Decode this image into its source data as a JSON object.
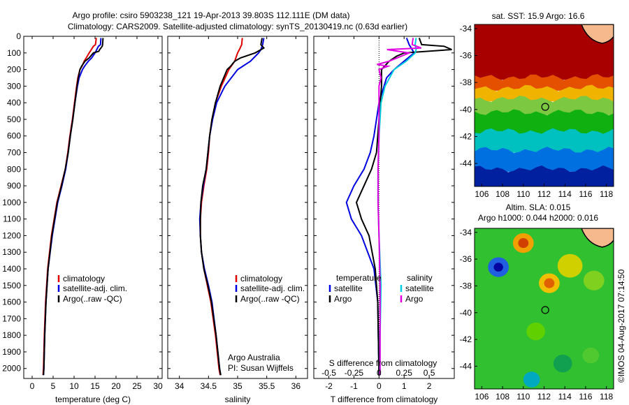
{
  "header": {
    "line1": "Argo profile: csiro 5903238_121 19-Apr-2013 39.803S 112.111E (DM data)",
    "line2": "Climatology: CARS2009. Satellite-adjusted climatology: synTS_20130419.nc (0.63d earlier)"
  },
  "colors": {
    "climatology": "#e00000",
    "satellite": "#0000e0",
    "argo": "#000000",
    "sat_salinity": "#00d0e0",
    "argo_salinity": "#e000e0"
  },
  "chart_data": [
    {
      "type": "line",
      "name": "temperature-profile",
      "xlabel": "temperature (deg C)",
      "x_ticks": [
        0,
        5,
        10,
        15,
        20,
        25,
        30
      ],
      "xlim": [
        -2,
        31
      ],
      "y_ticks": [
        0,
        100,
        200,
        300,
        400,
        500,
        600,
        700,
        800,
        900,
        1000,
        1100,
        1200,
        1300,
        1400,
        1500,
        1600,
        1700,
        1800,
        1900,
        2000
      ],
      "ylim": [
        0,
        2060
      ],
      "legend": [
        "climatology",
        "satellite-adj. clim.",
        "Argo(..raw -QC)"
      ],
      "series": [
        {
          "name": "climatology",
          "color": "#e00000",
          "pressure": [
            10,
            50,
            60,
            100,
            130,
            150,
            180,
            200,
            250,
            300,
            400,
            500,
            600,
            700,
            800,
            900,
            1000,
            1200,
            1400,
            1600,
            1800,
            2000,
            2040
          ],
          "values": [
            15.3,
            15.1,
            14.6,
            13.6,
            12.9,
            12.4,
            11.9,
            11.4,
            10.9,
            10.6,
            10.1,
            9.6,
            9.0,
            8.5,
            7.9,
            6.9,
            5.9,
            4.6,
            3.7,
            3.2,
            2.9,
            2.7,
            2.6
          ]
        },
        {
          "name": "satellite-adj. clim.",
          "color": "#0000e0",
          "pressure": [
            10,
            50,
            60,
            100,
            130,
            150,
            180,
            200,
            250,
            300,
            400,
            500,
            600,
            700,
            800,
            900,
            1000,
            1200,
            1400,
            1600,
            1800,
            2000,
            2040
          ],
          "values": [
            16.4,
            16.3,
            15.8,
            15.0,
            14.2,
            13.4,
            12.5,
            12.0,
            11.2,
            10.8,
            10.2,
            9.7,
            9.1,
            8.6,
            8.0,
            7.1,
            6.1,
            4.8,
            3.8,
            3.3,
            3.0,
            2.8,
            2.7
          ]
        },
        {
          "name": "Argo(..raw -QC)",
          "color": "#000000",
          "pressure": [
            10,
            50,
            60,
            80,
            90,
            100,
            130,
            150,
            180,
            200,
            250,
            300,
            400,
            500,
            600,
            700,
            800,
            900,
            1000,
            1200,
            1400,
            1600,
            1800,
            2000,
            2040
          ],
          "values": [
            16.9,
            16.8,
            16.7,
            16.1,
            15.9,
            14.6,
            13.6,
            12.6,
            11.8,
            11.4,
            11.0,
            10.7,
            10.2,
            9.7,
            9.1,
            8.6,
            7.9,
            7.0,
            6.0,
            4.7,
            3.8,
            3.3,
            3.0,
            2.8,
            2.7
          ]
        }
      ]
    },
    {
      "type": "line",
      "name": "salinity-profile",
      "xlabel": "salinity",
      "x_ticks": [
        34,
        34.5,
        35,
        35.5,
        36
      ],
      "xlim": [
        33.8,
        36.2
      ],
      "ylim": [
        0,
        2060
      ],
      "legend": [
        "climatology",
        "satellite-adj. clim.",
        "Argo(..raw -QC)"
      ],
      "annotation": [
        "Argo Australia",
        "PI: Susan Wijffels"
      ],
      "series": [
        {
          "name": "climatology",
          "color": "#e00000",
          "pressure": [
            10,
            50,
            80,
            100,
            150,
            200,
            300,
            400,
            500,
            600,
            700,
            800,
            900,
            1000,
            1100,
            1200,
            1300,
            1400,
            1500,
            1600,
            1800,
            2000,
            2040
          ],
          "values": [
            35.08,
            35.07,
            35.03,
            35.0,
            34.95,
            34.85,
            34.72,
            34.62,
            34.56,
            34.52,
            34.5,
            34.47,
            34.42,
            34.38,
            34.36,
            34.36,
            34.38,
            34.42,
            34.48,
            34.54,
            34.62,
            34.68,
            34.7
          ]
        },
        {
          "name": "satellite-adj. clim.",
          "color": "#0000e0",
          "pressure": [
            10,
            50,
            80,
            100,
            150,
            200,
            300,
            400,
            500,
            600,
            700,
            800,
            900,
            1000,
            1100,
            1200,
            1300,
            1400,
            1500,
            1600,
            1800,
            2000,
            2040
          ],
          "values": [
            35.45,
            35.43,
            35.4,
            35.36,
            35.22,
            35.0,
            34.78,
            34.64,
            34.57,
            34.52,
            34.49,
            34.46,
            34.41,
            34.37,
            34.35,
            34.36,
            34.38,
            34.43,
            34.5,
            34.56,
            34.63,
            34.69,
            34.71
          ]
        },
        {
          "name": "Argo(..raw -QC)",
          "color": "#000000",
          "pressure": [
            10,
            50,
            70,
            100,
            130,
            150,
            180,
            200,
            250,
            300,
            400,
            500,
            600,
            700,
            800,
            900,
            1000,
            1100,
            1200,
            1300,
            1400,
            1500,
            1600,
            1800,
            2000,
            2040
          ],
          "values": [
            35.42,
            35.4,
            35.45,
            35.3,
            35.05,
            34.95,
            34.88,
            34.82,
            34.76,
            34.7,
            34.62,
            34.56,
            34.52,
            34.49,
            34.46,
            34.4,
            34.37,
            34.36,
            34.36,
            34.38,
            34.42,
            34.49,
            34.55,
            34.63,
            34.69,
            34.71
          ]
        }
      ]
    },
    {
      "type": "line",
      "name": "difference-profile",
      "xlabel": "T difference from climatology",
      "xlabel_top": "S difference from climatology",
      "x_ticks": [
        -2,
        -1,
        0,
        1,
        2
      ],
      "xlim": [
        -2.6,
        3.0
      ],
      "x_ticks_top": [
        -0.5,
        -0.25,
        0,
        0.25,
        0.5
      ],
      "ylim": [
        0,
        2060
      ],
      "legend": {
        "temperature": [
          "satellite",
          "Argo"
        ],
        "salinity": [
          "satellite",
          "Argo"
        ]
      },
      "legend_titles": [
        "temperature",
        "salinity"
      ],
      "series": [
        {
          "name": "temperature satellite",
          "color": "#0000e0",
          "pressure": [
            10,
            50,
            100,
            150,
            200,
            250,
            300,
            400,
            500,
            600,
            700,
            800,
            900,
            1000,
            1100,
            1200,
            1400,
            1600,
            2040
          ],
          "values": [
            1.1,
            1.2,
            1.4,
            1.0,
            0.6,
            0.3,
            0.2,
            0.0,
            -0.1,
            -0.2,
            -0.35,
            -0.6,
            -1.0,
            -1.3,
            -1.1,
            -0.7,
            -0.2,
            -0.05,
            0.0
          ]
        },
        {
          "name": "temperature Argo",
          "color": "#000000",
          "pressure": [
            10,
            50,
            60,
            80,
            100,
            120,
            150,
            200,
            250,
            300,
            400,
            500,
            600,
            700,
            800,
            900,
            1000,
            1100,
            1200,
            1400,
            1600,
            2040
          ],
          "values": [
            1.6,
            1.7,
            2.6,
            2.9,
            1.0,
            0.7,
            0.4,
            0.1,
            0.1,
            0.1,
            0.05,
            0.0,
            -0.05,
            -0.1,
            -0.3,
            -0.6,
            -0.9,
            -0.7,
            -0.4,
            -0.15,
            -0.05,
            0.0
          ]
        },
        {
          "name": "salinity satellite",
          "color": "#00d0e0",
          "pressure": [
            10,
            50,
            80,
            100,
            150,
            200,
            300,
            400,
            500,
            600,
            800,
            1000,
            1200,
            1500,
            1800,
            2040
          ],
          "values": [
            0.37,
            0.36,
            0.37,
            0.36,
            0.27,
            0.15,
            0.06,
            0.02,
            0.01,
            0.0,
            -0.01,
            -0.01,
            0.0,
            0.02,
            0.01,
            0.01
          ]
        },
        {
          "name": "salinity Argo",
          "color": "#e000e0",
          "pressure": [
            10,
            50,
            70,
            80,
            100,
            150,
            170,
            180,
            200,
            250,
            300,
            400,
            600,
            800,
            1000,
            1200,
            1500,
            2040
          ],
          "values": [
            0.34,
            0.33,
            0.42,
            0.08,
            0.3,
            0.1,
            -0.02,
            0.09,
            0.0,
            0.02,
            0.0,
            0.0,
            0.0,
            -0.01,
            -0.01,
            0.0,
            0.01,
            0.01
          ]
        }
      ]
    },
    {
      "type": "heatmap",
      "name": "sst-map",
      "title": "sat. SST: 15.9 Argo: 16.6",
      "x_ticks": [
        106,
        108,
        110,
        112,
        114,
        116,
        118
      ],
      "y_ticks": [
        -34,
        -36,
        -38,
        -40,
        -42,
        -44
      ],
      "xlim": [
        105.3,
        118.7
      ],
      "ylim": [
        -45.7,
        -33.7
      ],
      "marker": {
        "lon": 112.111,
        "lat": -39.803
      },
      "bands": [
        {
          "lat_top": -33.7,
          "lat_bottom": -37.6,
          "color": "#a80000"
        },
        {
          "lat_top": -37.6,
          "lat_bottom": -38.4,
          "color": "#e45000"
        },
        {
          "lat_top": -38.4,
          "lat_bottom": -39.2,
          "color": "#f0b400"
        },
        {
          "lat_top": -39.2,
          "lat_bottom": -40.2,
          "color": "#7cc840"
        },
        {
          "lat_top": -40.2,
          "lat_bottom": -41.6,
          "color": "#10b010"
        },
        {
          "lat_top": -41.6,
          "lat_bottom": -43.0,
          "color": "#00c0c0"
        },
        {
          "lat_top": -43.0,
          "lat_bottom": -44.4,
          "color": "#0070e0"
        },
        {
          "lat_top": -44.4,
          "lat_bottom": -45.7,
          "color": "#0020a0"
        }
      ]
    },
    {
      "type": "heatmap",
      "name": "sla-map",
      "title": "Altim. SLA: 0.015",
      "subtitle": "Argo h1000: 0.044 h2000: 0.016",
      "x_ticks": [
        106,
        108,
        110,
        112,
        114,
        116,
        118
      ],
      "y_ticks": [
        -34,
        -36,
        -38,
        -40,
        -42,
        -44
      ],
      "xlim": [
        105.3,
        118.7
      ],
      "ylim": [
        -45.7,
        -33.7
      ],
      "marker": {
        "lon": 112.111,
        "lat": -39.803
      },
      "background": "#30c030",
      "blobs": [
        {
          "lon": 107.6,
          "lat": -36.6,
          "r": 1.0,
          "color": "#2060e0"
        },
        {
          "lon": 107.6,
          "lat": -36.6,
          "r": 0.45,
          "color": "#0000a0"
        },
        {
          "lon": 110.0,
          "lat": -34.8,
          "r": 1.0,
          "color": "#f0a000"
        },
        {
          "lon": 110.0,
          "lat": -34.8,
          "r": 0.5,
          "color": "#d04000"
        },
        {
          "lon": 112.5,
          "lat": -37.8,
          "r": 1.0,
          "color": "#f0c000"
        },
        {
          "lon": 112.5,
          "lat": -37.8,
          "r": 0.5,
          "color": "#e06000"
        },
        {
          "lon": 114.5,
          "lat": -36.5,
          "r": 1.2,
          "color": "#d0d000"
        },
        {
          "lon": 111.2,
          "lat": -41.4,
          "r": 0.9,
          "color": "#60d000"
        },
        {
          "lon": 110.8,
          "lat": -45.0,
          "r": 0.8,
          "color": "#00a8c0"
        },
        {
          "lon": 113.8,
          "lat": -43.8,
          "r": 0.9,
          "color": "#10a050"
        },
        {
          "lon": 116.8,
          "lat": -37.6,
          "r": 1.0,
          "color": "#80d020"
        },
        {
          "lon": 116.5,
          "lat": -43.2,
          "r": 0.8,
          "color": "#50c830"
        }
      ]
    }
  ],
  "footer_stamp": "©IMOS 04-Aug-2017 07:14:50"
}
